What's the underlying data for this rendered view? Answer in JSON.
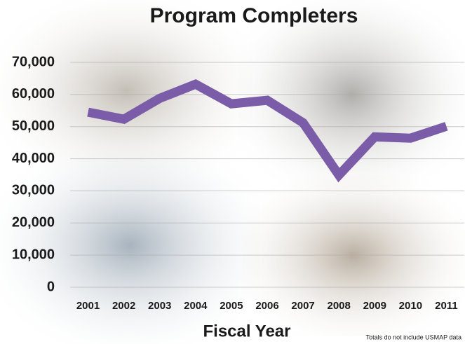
{
  "chart_data": {
    "type": "line",
    "title": "Program Completers",
    "x_label": "Fiscal Year",
    "note": "Totals do not include USMAP data",
    "categories": [
      "2001",
      "2002",
      "2003",
      "2004",
      "2005",
      "2006",
      "2007",
      "2008",
      "2009",
      "2010",
      "2011"
    ],
    "series": [
      {
        "color": "#7b5ca8",
        "values": [
          54500,
          52300,
          58800,
          63200,
          57100,
          58200,
          51200,
          34900,
          46800,
          46400,
          50100
        ]
      }
    ],
    "ylim": [
      0,
      70000
    ],
    "yticks": [
      0,
      {
        "value": 10000,
        "label": "10,000"
      },
      {
        "value": 20000,
        "label": "20,000"
      },
      {
        "value": 30000,
        "label": "30,000"
      },
      {
        "value": 40000,
        "label": "40,000"
      },
      {
        "value": 50000,
        "label": "50,000"
      },
      {
        "value": 60000,
        "label": "60,000"
      },
      {
        "value": 70000,
        "label": "70,000"
      }
    ],
    "grid": true
  }
}
